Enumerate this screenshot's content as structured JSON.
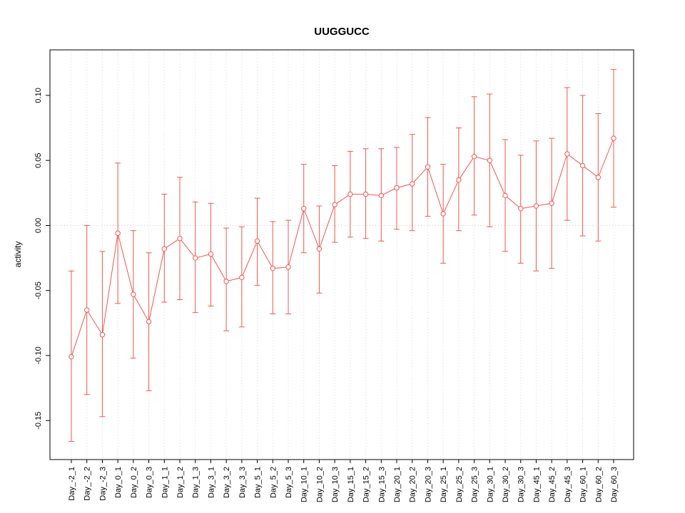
{
  "chart_data": {
    "type": "line",
    "title": "UUGGUCC",
    "ylabel": "activity",
    "xlabel": "",
    "ylim": [
      -0.18,
      0.135
    ],
    "yticks": [
      -0.15,
      -0.1,
      -0.05,
      0.0,
      0.05,
      0.1
    ],
    "grid": "dotted vertical gridline at each category; dotted horizontal reference line at y=0",
    "legend": "none",
    "categories": [
      "Day_-2_1",
      "Day_-2_2",
      "Day_-2_3",
      "Day_0_1",
      "Day_0_2",
      "Day_0_3",
      "Day_1_1",
      "Day_1_2",
      "Day_1_3",
      "Day_3_1",
      "Day_3_2",
      "Day_3_3",
      "Day_5_1",
      "Day_5_2",
      "Day_5_3",
      "Day_10_1",
      "Day_10_2",
      "Day_10_3",
      "Day_15_1",
      "Day_15_2",
      "Day_15_3",
      "Day_20_1",
      "Day_20_2",
      "Day_20_3",
      "Day_25_1",
      "Day_25_2",
      "Day_25_3",
      "Day_30_1",
      "Day_30_2",
      "Day_30_3",
      "Day_45_1",
      "Day_45_2",
      "Day_45_3",
      "Day_60_1",
      "Day_60_2",
      "Day_60_3"
    ],
    "series": [
      {
        "name": "activity",
        "values": [
          -0.101,
          -0.065,
          -0.084,
          -0.006,
          -0.053,
          -0.074,
          -0.018,
          -0.01,
          -0.025,
          -0.022,
          -0.043,
          -0.04,
          -0.012,
          -0.033,
          -0.032,
          0.013,
          -0.018,
          0.016,
          0.024,
          0.024,
          0.023,
          0.029,
          0.032,
          0.045,
          0.009,
          0.035,
          0.053,
          0.05,
          0.023,
          0.013,
          0.015,
          0.017,
          0.055,
          0.046,
          0.037,
          0.067
        ],
        "lower": [
          -0.166,
          -0.13,
          -0.147,
          -0.06,
          -0.102,
          -0.127,
          -0.059,
          -0.057,
          -0.067,
          -0.062,
          -0.081,
          -0.078,
          -0.046,
          -0.068,
          -0.068,
          -0.021,
          -0.052,
          -0.013,
          -0.009,
          -0.01,
          -0.012,
          -0.003,
          -0.004,
          0.007,
          -0.029,
          -0.004,
          0.008,
          -0.001,
          -0.02,
          -0.029,
          -0.035,
          -0.033,
          0.004,
          -0.008,
          -0.012,
          0.014
        ],
        "upper": [
          -0.035,
          0.0,
          -0.02,
          0.048,
          -0.004,
          -0.021,
          0.024,
          0.037,
          0.018,
          0.017,
          -0.002,
          -0.001,
          0.021,
          0.003,
          0.004,
          0.047,
          0.015,
          0.046,
          0.057,
          0.059,
          0.059,
          0.06,
          0.07,
          0.083,
          0.047,
          0.075,
          0.099,
          0.101,
          0.066,
          0.054,
          0.065,
          0.067,
          0.106,
          0.1,
          0.086,
          0.12
        ]
      }
    ],
    "colors": {
      "series": "#ef5850",
      "grid": "#d8d8d8",
      "zero_line": "#c8c8c8",
      "axis": "#000000",
      "point_fill": "#ffffff"
    }
  }
}
